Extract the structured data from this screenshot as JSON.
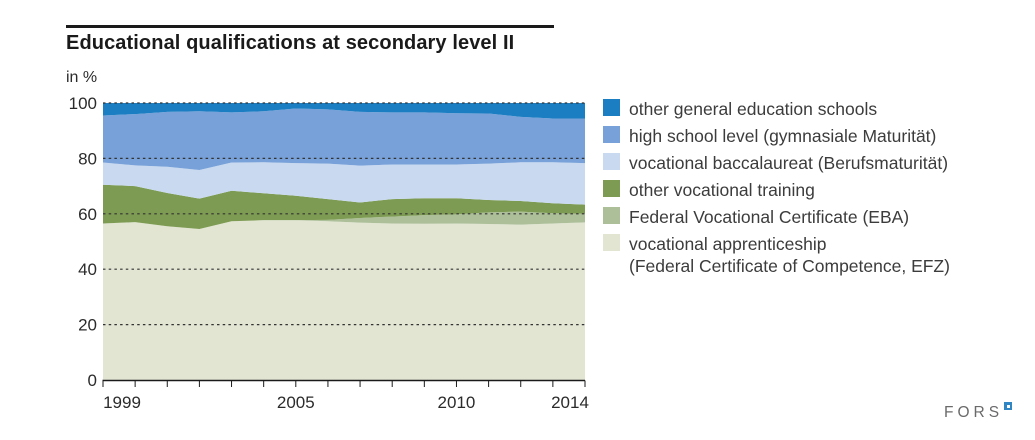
{
  "header": {
    "title": "Educational qualifications at secondary level II",
    "unit_label": "in %"
  },
  "legend": {
    "items": [
      {
        "label": "other general education schools",
        "color": "#1b7ec2"
      },
      {
        "label": "high school level (gymnasiale Maturität)",
        "color": "#77a1d8"
      },
      {
        "label": "vocational baccalaureat (Berufsmaturität)",
        "color": "#c9d9f0"
      },
      {
        "label": "other vocational training",
        "color": "#7d9b52"
      },
      {
        "label": "Federal Vocational Certificate (EBA)",
        "color": "#acbf98"
      },
      {
        "label": "vocational apprenticeship",
        "label_line2": "(Federal Certificate of Competence, EFZ)",
        "color": "#e1e5d2"
      }
    ]
  },
  "footer": {
    "brand": "FORS"
  },
  "chart_data": {
    "type": "area",
    "stacked": true,
    "title": "Educational qualifications at secondary level II",
    "ylabel": "in %",
    "ylim": [
      0,
      100
    ],
    "y_ticks": [
      0,
      20,
      40,
      60,
      80,
      100
    ],
    "grid": "dashed horizontal",
    "legend_position": "right",
    "x": [
      1999,
      2000,
      2001,
      2002,
      2003,
      2004,
      2005,
      2006,
      2007,
      2008,
      2009,
      2010,
      2011,
      2012,
      2013,
      2014
    ],
    "x_tick_labels": [
      1999,
      2005,
      2010,
      2014
    ],
    "series": [
      {
        "name": "vocational apprenticeship (Federal Certificate of Competence, EFZ)",
        "color": "#e1e5d2",
        "values": [
          56.5,
          57.0,
          55.5,
          54.5,
          57.3,
          57.7,
          57.7,
          57.3,
          56.8,
          56.5,
          56.4,
          56.5,
          56.3,
          56.1,
          56.5,
          56.9
        ]
      },
      {
        "name": "Federal Vocational Certificate (EBA)",
        "color": "#acbf98",
        "values": [
          0,
          0,
          0,
          0,
          0,
          0,
          0,
          0.5,
          1.7,
          2.5,
          3.1,
          3.3,
          4.2,
          4.7,
          3.7,
          3.1
        ]
      },
      {
        "name": "other vocational training",
        "color": "#7d9b52",
        "values": [
          14.0,
          13.0,
          12.0,
          11.0,
          11.0,
          9.7,
          8.8,
          7.5,
          5.6,
          6.3,
          6.1,
          5.8,
          4.5,
          3.8,
          3.6,
          3.3
        ]
      },
      {
        "name": "vocational baccalaureat (Berufsmaturität)",
        "color": "#c9d9f0",
        "values": [
          8.0,
          7.5,
          9.5,
          10.3,
          10.2,
          11.2,
          11.8,
          12.8,
          13.3,
          12.5,
          12.2,
          12.2,
          13.1,
          14.0,
          14.8,
          15.0
        ]
      },
      {
        "name": "high school level (gymnasiale Maturität)",
        "color": "#77a1d8",
        "values": [
          17.0,
          18.5,
          19.8,
          21.2,
          18.1,
          18.4,
          19.7,
          19.6,
          19.4,
          18.8,
          18.8,
          18.5,
          18.1,
          16.4,
          15.8,
          16.1
        ]
      },
      {
        "name": "other general education schools",
        "color": "#1b7ec2",
        "values": [
          4.5,
          4.0,
          3.2,
          3.0,
          3.4,
          3.0,
          2.0,
          2.3,
          3.2,
          3.4,
          3.4,
          3.7,
          3.8,
          5.0,
          5.6,
          5.6
        ]
      }
    ]
  }
}
